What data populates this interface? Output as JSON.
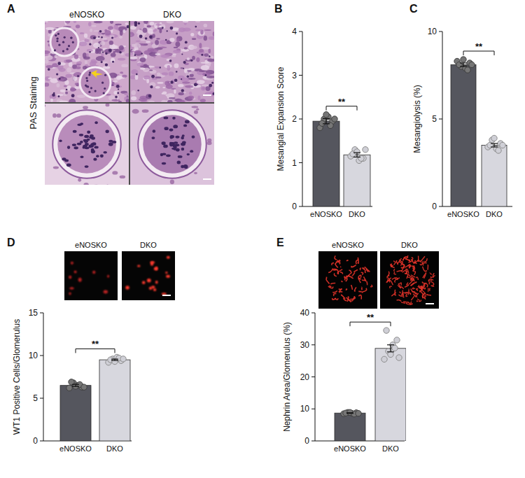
{
  "chart_data": [
    {
      "type": "bar",
      "panel": "B",
      "ylabel": "Mesangial Expansion Score",
      "categories": [
        "eNOSKO",
        "DKO"
      ],
      "values": [
        1.95,
        1.18
      ],
      "errors": [
        0.06,
        0.05
      ],
      "points": [
        [
          1.8,
          2.0,
          2.05,
          1.95,
          1.9,
          2.1,
          1.85,
          2.0
        ],
        [
          1.15,
          1.3,
          1.05,
          1.1,
          1.2,
          1.25,
          1.1,
          1.3
        ]
      ],
      "colors": [
        "#55565e",
        "#d7d7de"
      ],
      "ylim": [
        0,
        4
      ],
      "yticks": [
        0,
        1,
        2,
        3,
        4
      ],
      "significance": "**"
    },
    {
      "type": "bar",
      "panel": "C",
      "ylabel": "Mesangiolysis (%)",
      "categories": [
        "eNOSKO",
        "DKO"
      ],
      "values": [
        8.1,
        3.5
      ],
      "errors": [
        0.1,
        0.1
      ],
      "points": [
        [
          8.3,
          8.0,
          7.9,
          8.2,
          8.1,
          8.4,
          7.8,
          8.1
        ],
        [
          3.4,
          3.8,
          3.3,
          3.6,
          3.5,
          3.9,
          3.2,
          3.5
        ]
      ],
      "colors": [
        "#55565e",
        "#d7d7de"
      ],
      "ylim": [
        0,
        10
      ],
      "yticks": [
        0,
        5,
        10
      ],
      "significance": "**"
    },
    {
      "type": "bar",
      "panel": "D",
      "ylabel": "WT1 Positive Cells/Glomerulus",
      "categories": [
        "eNOSKO",
        "DKO"
      ],
      "values": [
        6.5,
        9.5
      ],
      "errors": [
        0.12,
        0.08
      ],
      "points": [
        [
          6.2,
          6.8,
          6.5,
          6.3,
          6.9,
          6.4,
          6.6,
          6.3
        ],
        [
          9.2,
          9.6,
          9.8,
          9.4,
          9.5,
          9.3,
          9.7,
          9.6
        ]
      ],
      "colors": [
        "#55565e",
        "#d7d7de"
      ],
      "ylim": [
        0,
        15
      ],
      "yticks": [
        0,
        5,
        10,
        15
      ],
      "significance": "**"
    },
    {
      "type": "bar",
      "panel": "E",
      "ylabel": "Nephrin Area/Glomerulus (%)",
      "categories": [
        "eNOSKO",
        "DKO"
      ],
      "values": [
        8.7,
        28.9
      ],
      "errors": [
        0.1,
        1.1
      ],
      "points": [
        [
          8.5,
          8.9,
          8.6,
          8.8,
          8.7,
          8.9,
          8.4,
          8.6
        ],
        [
          25.5,
          28,
          30,
          31.5,
          34.5,
          27,
          29,
          26
        ]
      ],
      "colors": [
        "#55565e",
        "#d7d7de"
      ],
      "ylim": [
        0,
        40
      ],
      "yticks": [
        0,
        10,
        20,
        30,
        40
      ],
      "significance": "**"
    }
  ],
  "images": [
    {
      "panel": "A",
      "row_label": "PAS Staining",
      "columns": [
        "eNOSKO",
        "DKO"
      ]
    },
    {
      "columns": [
        "eNOSKO",
        "DKO"
      ]
    },
    {
      "columns": [
        "eNOSKO",
        "DKO"
      ]
    }
  ]
}
